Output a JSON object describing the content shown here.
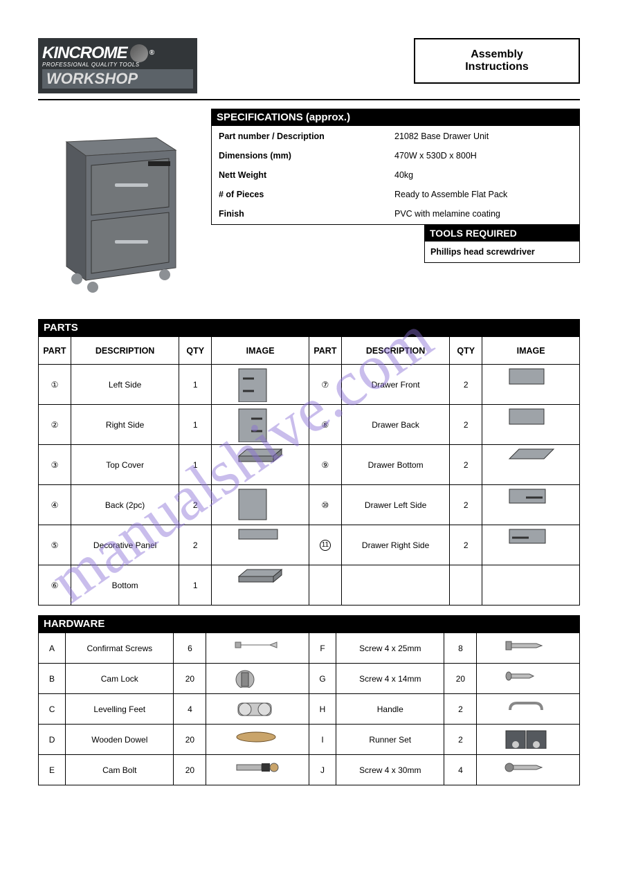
{
  "logo": {
    "brand": "KINCROME",
    "sub": "PROFESSIONAL QUALITY TOOLS",
    "workshop": "WORKSHOP",
    "reg": "®"
  },
  "title": {
    "line1": "Assembly",
    "line2": "Instructions"
  },
  "watermark": "manualshive.com",
  "specifications": {
    "header": "SPECIFICATIONS (approx.)",
    "rows": [
      {
        "label": "Part number / Description",
        "value": "21082 Base Drawer Unit"
      },
      {
        "label": "Dimensions (mm)",
        "value": "470W x 530D x 800H"
      },
      {
        "label": "Nett Weight",
        "value": "40kg"
      },
      {
        "label": "# of Pieces",
        "value": "Ready to Assemble Flat Pack"
      },
      {
        "label": "Finish",
        "value": "PVC with melamine coating"
      }
    ]
  },
  "tools": {
    "header": "TOOLS REQUIRED",
    "body": "Phillips head screwdriver"
  },
  "parts_header": "PARTS",
  "parts_columns": [
    "PART",
    "DESCRIPTION",
    "QTY",
    "IMAGE",
    "PART",
    "DESCRIPTION",
    "QTY",
    "IMAGE"
  ],
  "parts_rows": [
    {
      "l": {
        "part": "①",
        "desc": "Left Side",
        "qty": "1",
        "img": "side-left"
      },
      "r": {
        "part": "⑦",
        "desc": "Drawer Front",
        "qty": "2",
        "img": "drawer-front"
      }
    },
    {
      "l": {
        "part": "②",
        "desc": "Right Side",
        "qty": "1",
        "img": "side-right"
      },
      "r": {
        "part": "⑧",
        "desc": "Drawer Back",
        "qty": "2",
        "img": "drawer-back"
      }
    },
    {
      "l": {
        "part": "③",
        "desc": "Top Cover",
        "qty": "1",
        "img": "top-cover"
      },
      "r": {
        "part": "⑨",
        "desc": "Drawer Bottom",
        "qty": "2",
        "img": "drawer-bottom"
      }
    },
    {
      "l": {
        "part": "④",
        "desc": "Back (2pc)",
        "qty": "2",
        "img": "back"
      },
      "r": {
        "part": "⑩",
        "desc": "Drawer Left Side",
        "qty": "2",
        "img": "drawer-side-l"
      }
    },
    {
      "l": {
        "part": "⑤",
        "desc": "Decorative Panel",
        "qty": "2",
        "img": "dec-panel"
      },
      "r": {
        "part": "⑪",
        "desc": "Drawer Right Side",
        "qty": "2",
        "img": "drawer-side-r",
        "partCircle": "11"
      }
    },
    {
      "l": {
        "part": "⑥",
        "desc": "Bottom",
        "qty": "1",
        "img": "bottom"
      },
      "r": null
    }
  ],
  "hardware_header": "HARDWARE",
  "hardware_rows": [
    {
      "l": {
        "a": "A",
        "d": "Confirmat Screws",
        "q": "6",
        "img": "confirmat"
      },
      "r": {
        "a": "F",
        "d": "Screw 4 x 25mm",
        "q": "8",
        "img": "screw-long"
      }
    },
    {
      "l": {
        "a": "B",
        "d": "Cam Lock",
        "q": "20",
        "img": "cam-lock"
      },
      "r": {
        "a": "G",
        "d": "Screw 4 x 14mm",
        "q": "20",
        "img": "screw-short"
      }
    },
    {
      "l": {
        "a": "C",
        "d": "Levelling Feet",
        "q": "4",
        "img": "feet"
      },
      "r": {
        "a": "H",
        "d": "Handle",
        "q": "2",
        "img": "handle"
      }
    },
    {
      "l": {
        "a": "D",
        "d": "Wooden Dowel",
        "q": "20",
        "img": "dowel"
      },
      "r": {
        "a": "I",
        "d": "Runner Set",
        "q": "2",
        "img": "runner"
      }
    },
    {
      "l": {
        "a": "E",
        "d": "Cam Bolt",
        "q": "20",
        "img": "cam-bolt"
      },
      "r": {
        "a": "J",
        "d": "Screw 4 x 30mm",
        "q": "4",
        "img": "screw-30"
      }
    }
  ],
  "colors": {
    "panel_fill": "#9ea3a8",
    "panel_stroke": "#333",
    "cabinet_body": "#6b7076",
    "cabinet_top": "#767b80"
  }
}
